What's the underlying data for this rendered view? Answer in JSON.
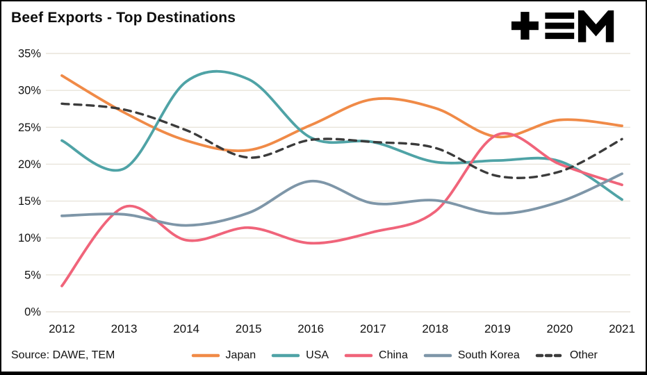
{
  "header": {
    "title": "Beef Exports - Top Destinations",
    "logo_text": "TEM"
  },
  "footer": {
    "source": "Source: DAWE, TEM"
  },
  "colors": {
    "background": "#ffffff",
    "border": "#000000",
    "grid": "#e8e4da",
    "axis_text": "#111111",
    "japan": "#f08a47",
    "usa": "#4fa3a6",
    "china": "#f0647a",
    "south_korea": "#7e96a8",
    "other": "#3b3b3b"
  },
  "chart_data": {
    "type": "line",
    "title": "Beef Exports - Top Destinations",
    "xlabel": "",
    "ylabel": "",
    "x": [
      2012,
      2013,
      2014,
      2015,
      2016,
      2017,
      2018,
      2019,
      2020,
      2021
    ],
    "ylim": [
      0,
      35
    ],
    "ytick_step": 5,
    "ytick_suffix": "%",
    "grid": "horizontal",
    "legend_position": "bottom",
    "series": [
      {
        "name": "Japan",
        "color": "#f08a47",
        "dash": false,
        "values": [
          32.0,
          27.0,
          23.2,
          21.9,
          25.3,
          28.8,
          27.6,
          23.7,
          26.0,
          25.2
        ]
      },
      {
        "name": "USA",
        "color": "#4fa3a6",
        "dash": false,
        "values": [
          23.2,
          19.4,
          31.2,
          31.5,
          23.6,
          23.0,
          20.3,
          20.5,
          20.4,
          15.2
        ]
      },
      {
        "name": "China",
        "color": "#f0647a",
        "dash": false,
        "values": [
          3.5,
          14.2,
          9.7,
          11.4,
          9.3,
          10.8,
          13.6,
          24.0,
          20.0,
          17.2
        ]
      },
      {
        "name": "South Korea",
        "color": "#7e96a8",
        "dash": false,
        "values": [
          13.0,
          13.2,
          11.7,
          13.4,
          17.7,
          14.7,
          15.1,
          13.3,
          14.9,
          18.7
        ]
      },
      {
        "name": "Other",
        "color": "#3b3b3b",
        "dash": true,
        "values": [
          28.2,
          27.4,
          24.6,
          20.9,
          23.3,
          23.0,
          22.2,
          18.4,
          19.0,
          23.4
        ]
      }
    ]
  }
}
